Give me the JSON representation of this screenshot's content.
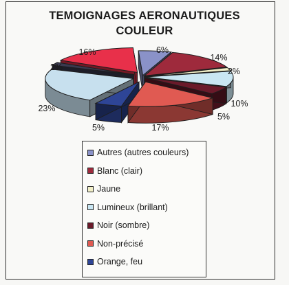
{
  "chart_data": {
    "type": "pie",
    "title": [
      "TEMOIGNAGES AERONAUTIQUES",
      "COULEUR"
    ],
    "legend_position": "bottom",
    "slices": [
      {
        "label": "Autres (autres couleurs)",
        "value": 6,
        "display": "6%",
        "color": "#8a92c8",
        "exploded": false
      },
      {
        "label": "Blanc (clair)",
        "value": 14,
        "display": "14%",
        "color": "#9e2a3c",
        "exploded": false
      },
      {
        "label": "Jaune",
        "value": 2,
        "display": "2%",
        "color": "#f2f0c8",
        "exploded": false
      },
      {
        "label": "Lumineux (brillant)",
        "value": 10,
        "display": "10%",
        "color": "#c9e6f2",
        "exploded": false
      },
      {
        "label": "Noir (sombre)",
        "value": 5,
        "display": "5%",
        "color": "#6a1a2a",
        "exploded": false
      },
      {
        "label": "Non-précisé",
        "value": 17,
        "display": "17%",
        "color": "#e05a52",
        "exploded": true
      },
      {
        "label": "Orange, feu",
        "value": 5,
        "display": "5%",
        "color": "#2e4596",
        "exploded": true
      },
      {
        "label": "",
        "value": 23,
        "display": "23%",
        "color": "#c7e0ee",
        "exploded": true
      },
      {
        "label": "",
        "value": 2,
        "display": "2%",
        "color": "#3a3a50",
        "exploded": true
      },
      {
        "label": "",
        "value": 16,
        "display": "16%",
        "color": "#e8304a",
        "exploded": true
      }
    ]
  }
}
